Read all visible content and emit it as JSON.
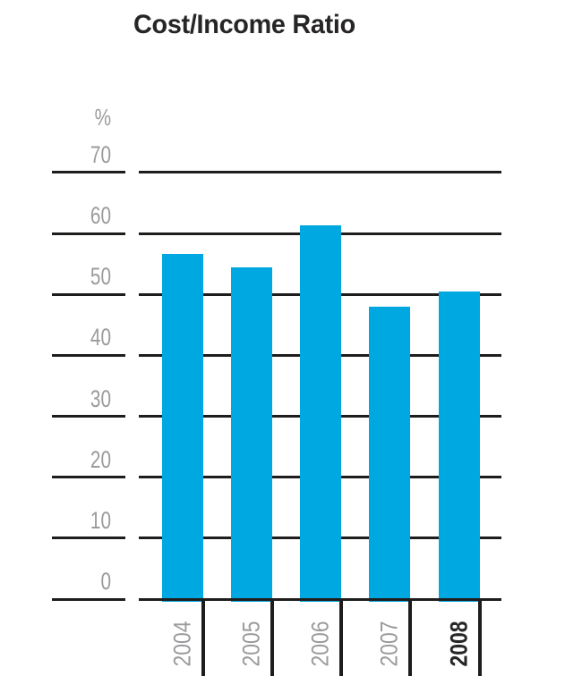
{
  "chart": {
    "title": "Cost/Income Ratio",
    "unit_label": "%"
  },
  "chart_data": {
    "type": "bar",
    "title": "Cost/Income Ratio",
    "xlabel": "",
    "ylabel": "%",
    "categories": [
      "2004",
      "2005",
      "2006",
      "2007",
      "2008"
    ],
    "values": [
      56.7,
      54.5,
      61.3,
      48.0,
      50.5
    ],
    "yticks": [
      0,
      10,
      20,
      30,
      40,
      50,
      60,
      70
    ],
    "ylim": [
      0,
      75
    ],
    "grid": true,
    "legend_position": "none",
    "highlight_category": "2008",
    "colors": {
      "bar": "#00a8e2",
      "grid": "#1f1d1c",
      "tick_label": "#9b9b9e",
      "category_label": "#9b9b9e",
      "highlight_label": "#272525",
      "title": "#272525",
      "background": "#ffffff"
    }
  }
}
